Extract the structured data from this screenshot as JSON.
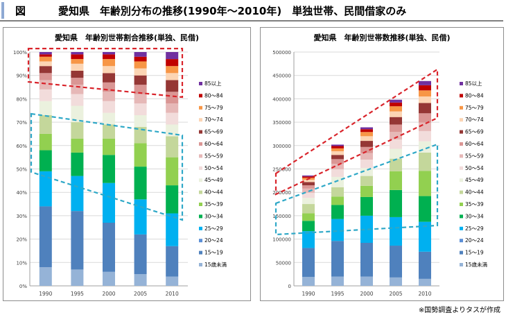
{
  "header": {
    "fig_label": "図",
    "title": "愛知県　年齢別分布の推移(1990年〜2010年)　単独世帯、民間借家のみ"
  },
  "footnote": "※国勢調査よりタスが作成",
  "colors": {
    "85以上": "#7030a0",
    "80〜84": "#c00000",
    "75〜79": "#f79646",
    "70〜74": "#fcd5b4",
    "65〜69": "#953735",
    "60〜64": "#da9694",
    "55〜59": "#e6b8b7",
    "50〜54": "#f2dcdb",
    "45〜49": "#ebf1de",
    "40〜44": "#c4d79b",
    "35〜39": "#92d050",
    "30〜34": "#00b050",
    "25〜29": "#00b0f0",
    "20〜24": "#5b8fd6",
    "15〜19": "#4f81bd",
    "15歳未満": "#95b3d7",
    "red_outline": "#d9242b",
    "blue_outline": "#2ea8c7"
  },
  "chart_data": [
    {
      "type": "bar",
      "stacked": true,
      "title": "愛知県　年齢別世帯割合推移(単独、民借)",
      "categories": [
        "1990",
        "1995",
        "2000",
        "2005",
        "2010"
      ],
      "yticks": [
        "0%",
        "10%",
        "20%",
        "30%",
        "40%",
        "50%",
        "60%",
        "70%",
        "80%",
        "90%",
        "100%"
      ],
      "ylim": [
        0,
        100
      ],
      "grid": true,
      "legend_position": "right",
      "series": [
        {
          "name": "15歳未満",
          "values": [
            8,
            7,
            6,
            5,
            4
          ]
        },
        {
          "name": "15〜19",
          "values": [
            26,
            25,
            21,
            17,
            13
          ]
        },
        {
          "name": "20〜24",
          "values": [
            0,
            0,
            0,
            0,
            0
          ]
        },
        {
          "name": "25〜29",
          "values": [
            15,
            15,
            17,
            15,
            14
          ]
        },
        {
          "name": "30〜34",
          "values": [
            9,
            10,
            12,
            14,
            12
          ]
        },
        {
          "name": "35〜39",
          "values": [
            7,
            6,
            7,
            10,
            12
          ]
        },
        {
          "name": "40〜44",
          "values": [
            8,
            7,
            6,
            7,
            9
          ]
        },
        {
          "name": "45〜49",
          "values": [
            6,
            7,
            5,
            5,
            5
          ]
        },
        {
          "name": "50〜54",
          "values": [
            5,
            5,
            5,
            5,
            5
          ]
        },
        {
          "name": "55〜59",
          "values": [
            4,
            4,
            4,
            4,
            4
          ]
        },
        {
          "name": "60〜64",
          "values": [
            3,
            3,
            4,
            4,
            5
          ]
        },
        {
          "name": "65〜69",
          "values": [
            3,
            3,
            4,
            4,
            5
          ]
        },
        {
          "name": "70〜74",
          "values": [
            2,
            3,
            3,
            3,
            3
          ]
        },
        {
          "name": "75〜79",
          "values": [
            2,
            2,
            3,
            3,
            3
          ]
        },
        {
          "name": "80〜84",
          "values": [
            1,
            2,
            2,
            2,
            3
          ]
        },
        {
          "name": "85以上",
          "values": [
            1,
            1,
            1,
            2,
            3
          ]
        }
      ]
    },
    {
      "type": "bar",
      "stacked": true,
      "title": "愛知県　年齢別世帯数推移(単独、民借)",
      "categories": [
        "1990",
        "1995",
        "2000",
        "2005",
        "2010"
      ],
      "yticks": [
        "0",
        "50000",
        "100000",
        "150000",
        "200000",
        "250000",
        "300000",
        "350000",
        "400000",
        "450000",
        "500000"
      ],
      "ylim": [
        0,
        500000
      ],
      "grid": true,
      "legend_position": "right",
      "series": [
        {
          "name": "15歳未満",
          "values": [
            19000,
            20000,
            20000,
            18000,
            15000
          ]
        },
        {
          "name": "15〜19",
          "values": [
            62000,
            76000,
            72000,
            68000,
            58000
          ]
        },
        {
          "name": "20〜24",
          "values": [
            0,
            0,
            0,
            0,
            0
          ]
        },
        {
          "name": "25〜29",
          "values": [
            36000,
            47000,
            58000,
            61000,
            64000
          ]
        },
        {
          "name": "30〜34",
          "values": [
            22000,
            30000,
            40000,
            58000,
            55000
          ]
        },
        {
          "name": "35〜39",
          "values": [
            16000,
            18000,
            24000,
            40000,
            54000
          ]
        },
        {
          "name": "40〜44",
          "values": [
            20000,
            20000,
            21000,
            27000,
            39000
          ]
        },
        {
          "name": "45〜49",
          "values": [
            13000,
            22000,
            17000,
            21000,
            24000
          ]
        },
        {
          "name": "50〜54",
          "values": [
            11000,
            16000,
            18000,
            20000,
            22000
          ]
        },
        {
          "name": "55〜59",
          "values": [
            9000,
            12000,
            14000,
            16000,
            18000
          ]
        },
        {
          "name": "60〜64",
          "values": [
            7000,
            10000,
            13000,
            16000,
            20000
          ]
        },
        {
          "name": "65〜69",
          "values": [
            7000,
            9000,
            13000,
            16000,
            22000
          ]
        },
        {
          "name": "70〜74",
          "values": [
            5000,
            8000,
            10000,
            12000,
            14000
          ]
        },
        {
          "name": "75〜79",
          "values": [
            4000,
            6000,
            9000,
            11000,
            13000
          ]
        },
        {
          "name": "80〜84",
          "values": [
            3000,
            5000,
            6000,
            8000,
            11000
          ]
        },
        {
          "name": "85以上",
          "values": [
            2000,
            3000,
            4000,
            6000,
            9000
          ]
        }
      ]
    }
  ]
}
